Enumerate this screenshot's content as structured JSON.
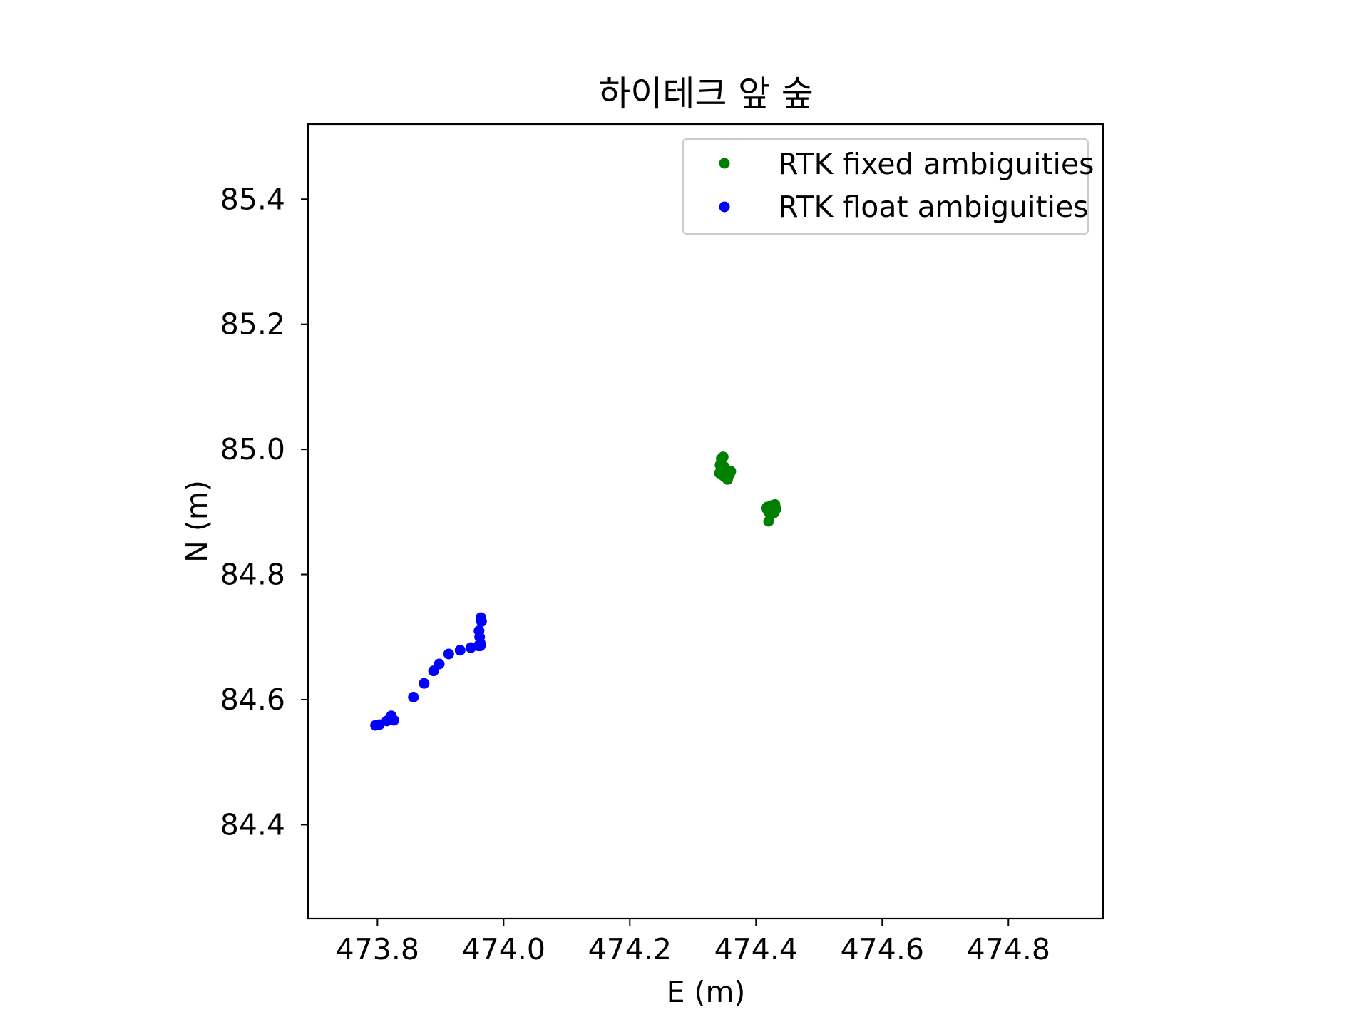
{
  "chart_data": {
    "type": "scatter",
    "title": "하이테크 앞 숲",
    "xlabel": "E (m)",
    "ylabel": "N (m)",
    "xlim": [
      473.69,
      474.95
    ],
    "ylim": [
      84.25,
      85.52
    ],
    "xticks": [
      473.8,
      474.0,
      474.2,
      474.4,
      474.6,
      474.8
    ],
    "yticks": [
      84.4,
      84.6,
      84.8,
      85.0,
      85.2,
      85.4
    ],
    "xtick_labels": [
      "473.8",
      "474.0",
      "474.2",
      "474.4",
      "474.6",
      "474.8"
    ],
    "ytick_labels": [
      "84.4",
      "84.6",
      "84.8",
      "85.0",
      "85.2",
      "85.4"
    ],
    "grid": false,
    "legend_position": "top-right",
    "series": [
      {
        "name": "RTK fixed ambiguities",
        "color": "#008000",
        "points": [
          [
            474.345,
            84.985
          ],
          [
            474.348,
            84.988
          ],
          [
            474.343,
            84.975
          ],
          [
            474.35,
            84.972
          ],
          [
            474.342,
            84.962
          ],
          [
            474.348,
            84.958
          ],
          [
            474.352,
            84.955
          ],
          [
            474.355,
            84.952
          ],
          [
            474.358,
            84.96
          ],
          [
            474.36,
            84.965
          ],
          [
            474.347,
            84.968
          ],
          [
            474.353,
            84.962
          ],
          [
            474.418,
            84.908
          ],
          [
            474.424,
            84.91
          ],
          [
            474.43,
            84.912
          ],
          [
            474.432,
            84.905
          ],
          [
            474.428,
            84.898
          ],
          [
            474.423,
            84.895
          ],
          [
            474.42,
            84.9
          ],
          [
            474.426,
            84.903
          ],
          [
            474.42,
            84.885
          ],
          [
            474.416,
            84.906
          ],
          [
            474.43,
            84.908
          ]
        ]
      },
      {
        "name": "RTK float ambiguities",
        "color": "#0000ff",
        "points": [
          [
            473.797,
            84.559
          ],
          [
            473.803,
            84.56
          ],
          [
            473.815,
            84.566
          ],
          [
            473.82,
            84.57
          ],
          [
            473.822,
            84.574
          ],
          [
            473.826,
            84.567
          ],
          [
            473.857,
            84.604
          ],
          [
            473.874,
            84.626
          ],
          [
            473.889,
            84.646
          ],
          [
            473.898,
            84.657
          ],
          [
            473.913,
            84.673
          ],
          [
            473.931,
            84.679
          ],
          [
            473.948,
            84.683
          ],
          [
            473.96,
            84.686
          ],
          [
            473.963,
            84.69
          ],
          [
            473.962,
            84.7
          ],
          [
            473.961,
            84.71
          ],
          [
            473.965,
            84.725
          ],
          [
            473.964,
            84.731
          ],
          [
            473.963,
            84.686
          ]
        ]
      }
    ]
  }
}
